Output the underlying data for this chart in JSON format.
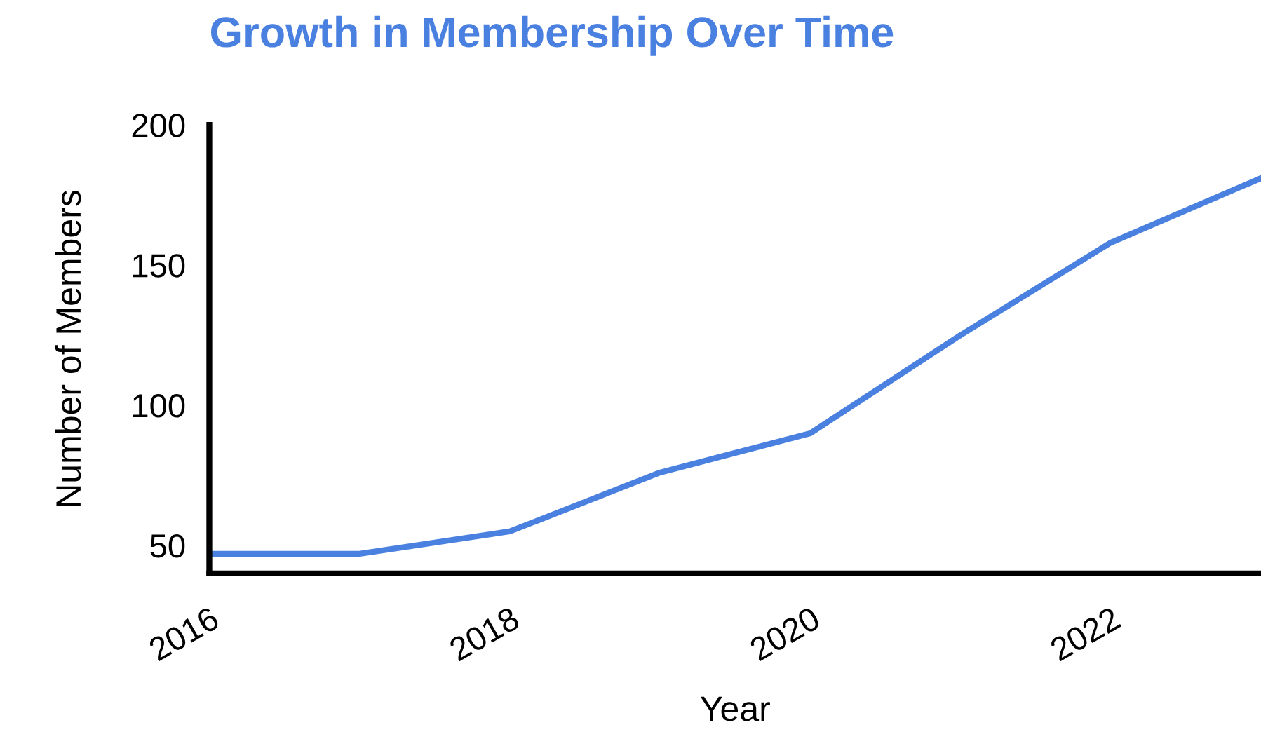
{
  "chart_data": {
    "type": "line",
    "title": "Growth in Membership Over Time",
    "xlabel": "Year",
    "ylabel": "Number of Members",
    "x": [
      2016,
      2017,
      2018,
      2019,
      2020,
      2021,
      2022,
      2023
    ],
    "series": [
      {
        "color": "#4a80e0",
        "values": [
          47,
          47,
          55,
          76,
          90,
          125,
          158,
          181
        ]
      }
    ],
    "xlim": [
      2016,
      2023
    ],
    "xticks": [
      2016,
      2018,
      2020,
      2022
    ],
    "ylim": [
      40,
      200
    ],
    "yticks": [
      50,
      100,
      150,
      200
    ],
    "grid": false,
    "legend": false,
    "marker": "none",
    "line_style": "solid"
  }
}
